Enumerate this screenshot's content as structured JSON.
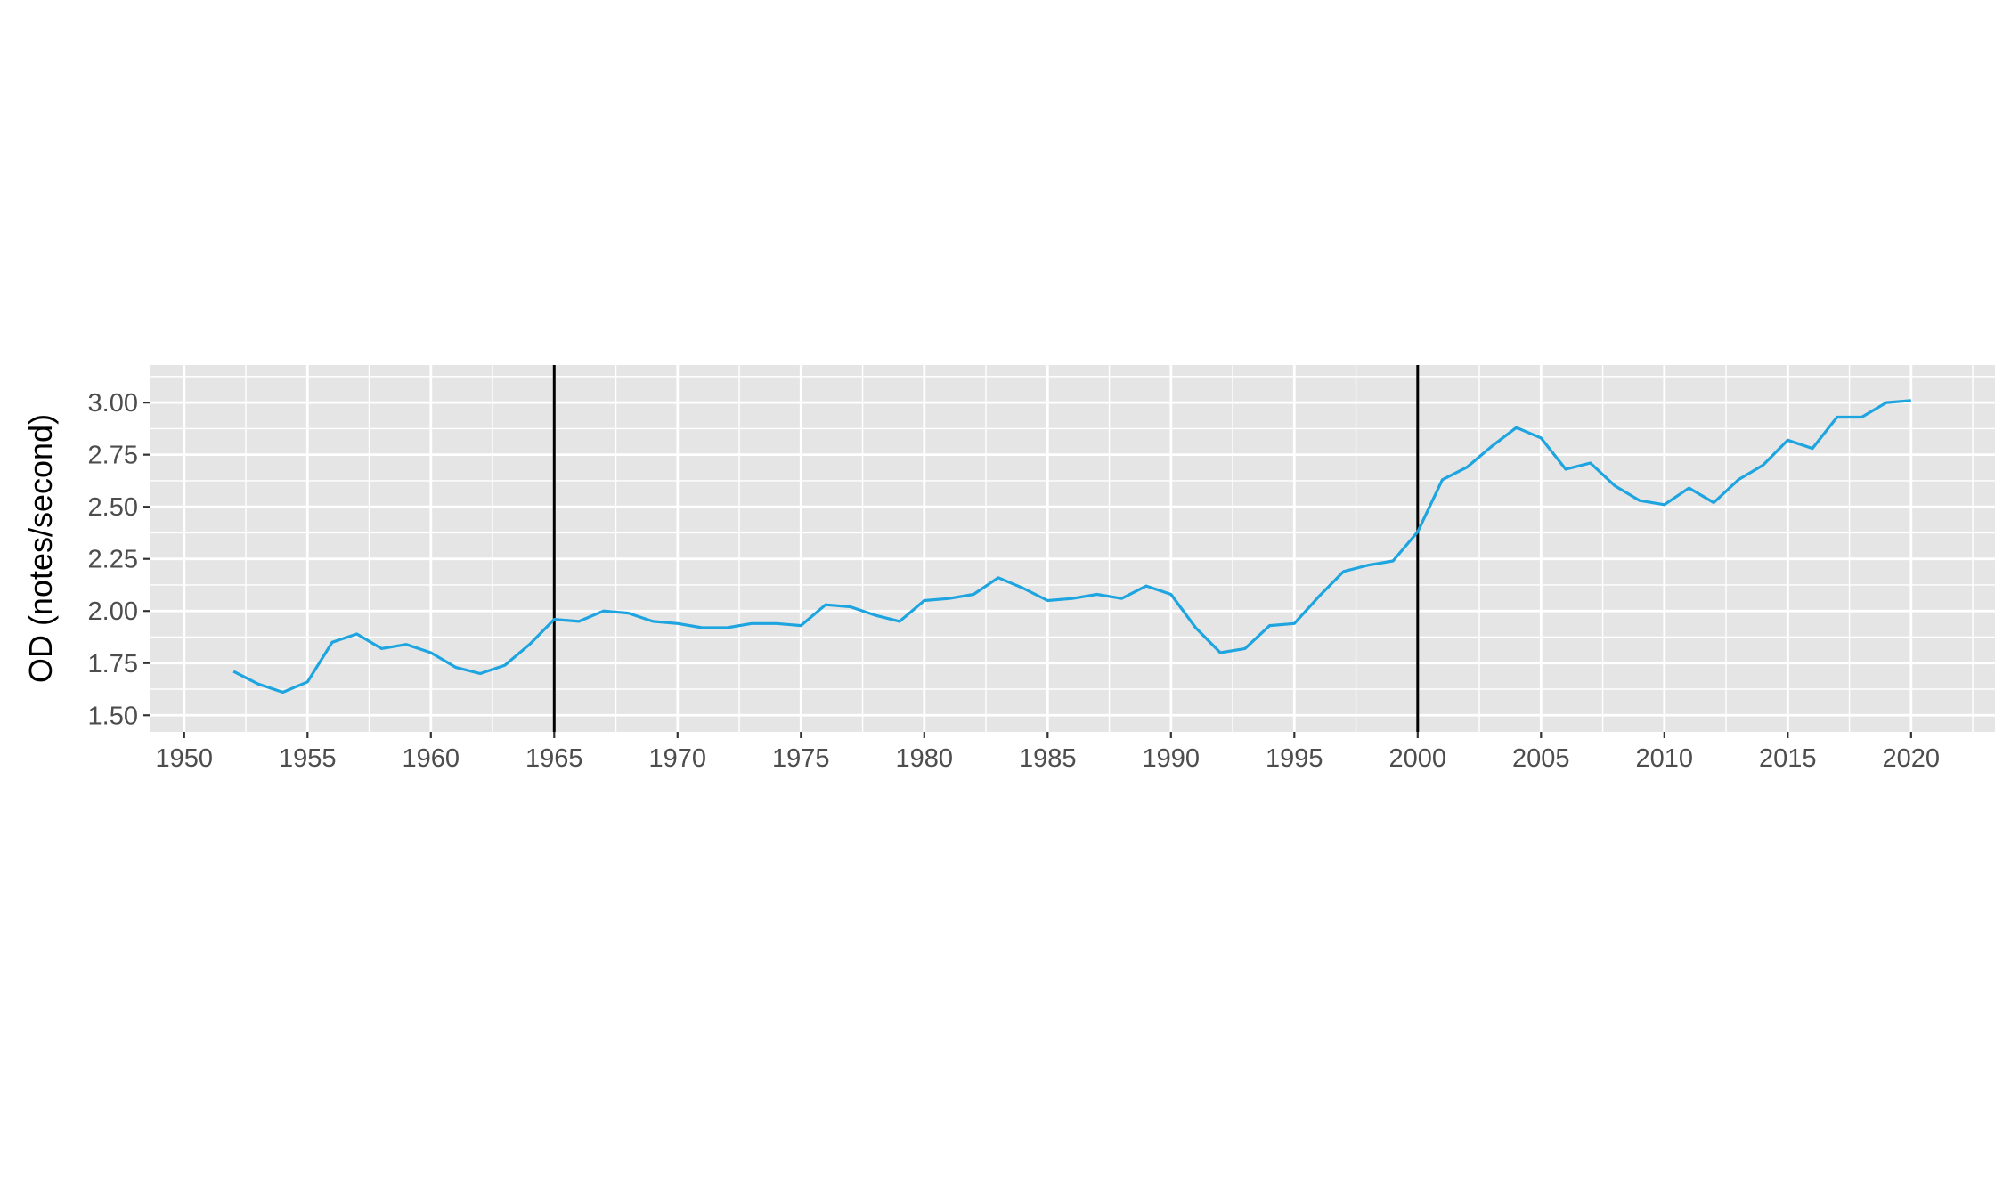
{
  "chart_data": {
    "type": "line",
    "title": "",
    "xlabel": "",
    "ylabel": "OD (notes/second)",
    "xlim": [
      1948.6,
      2023.4
    ],
    "ylim": [
      1.42,
      3.18
    ],
    "x_ticks": [
      "1950",
      "1955",
      "1960",
      "1965",
      "1970",
      "1975",
      "1980",
      "1985",
      "1990",
      "1995",
      "2000",
      "2005",
      "2010",
      "2015",
      "2020"
    ],
    "y_ticks": [
      "1.50",
      "1.75",
      "2.00",
      "2.25",
      "2.50",
      "2.75",
      "3.00"
    ],
    "grid": true,
    "legend": "none",
    "vlines": [
      1965,
      2000
    ],
    "colors": {
      "line": "#1ea5e0",
      "panel": "#e5e5e5",
      "grid": "#ffffff",
      "vline": "#000000"
    },
    "series": [
      {
        "x": [
          1952,
          1953,
          1954,
          1955,
          1956,
          1957,
          1958,
          1959,
          1960,
          1961,
          1962,
          1963,
          1964,
          1965,
          1966,
          1967,
          1968,
          1969,
          1970,
          1971,
          1972,
          1973,
          1974,
          1975,
          1976,
          1977,
          1978,
          1979,
          1980,
          1981,
          1982,
          1983,
          1984,
          1985,
          1986,
          1987,
          1988,
          1989,
          1990,
          1991,
          1992,
          1993,
          1994,
          1995,
          1996,
          1997,
          1998,
          1999,
          2000,
          2001,
          2002,
          2003,
          2004,
          2005,
          2006,
          2007,
          2008,
          2009,
          2010,
          2011,
          2012,
          2013,
          2014,
          2015,
          2016,
          2017,
          2018,
          2019,
          2020
        ],
        "values": [
          1.71,
          1.65,
          1.61,
          1.66,
          1.85,
          1.89,
          1.82,
          1.84,
          1.8,
          1.73,
          1.7,
          1.74,
          1.84,
          1.96,
          1.95,
          2.0,
          1.99,
          1.95,
          1.94,
          1.92,
          1.92,
          1.94,
          1.94,
          1.93,
          2.03,
          2.02,
          1.98,
          1.95,
          2.05,
          2.06,
          2.08,
          2.16,
          2.11,
          2.05,
          2.06,
          2.08,
          2.06,
          2.12,
          2.08,
          1.92,
          1.8,
          1.82,
          1.93,
          1.94,
          2.07,
          2.19,
          2.22,
          2.24,
          2.38,
          2.63,
          2.69,
          2.79,
          2.88,
          2.83,
          2.68,
          2.71,
          2.6,
          2.53,
          2.51,
          2.59,
          2.52,
          2.63,
          2.7,
          2.82,
          2.78,
          2.93,
          2.93,
          3.0,
          3.01
        ]
      }
    ]
  }
}
